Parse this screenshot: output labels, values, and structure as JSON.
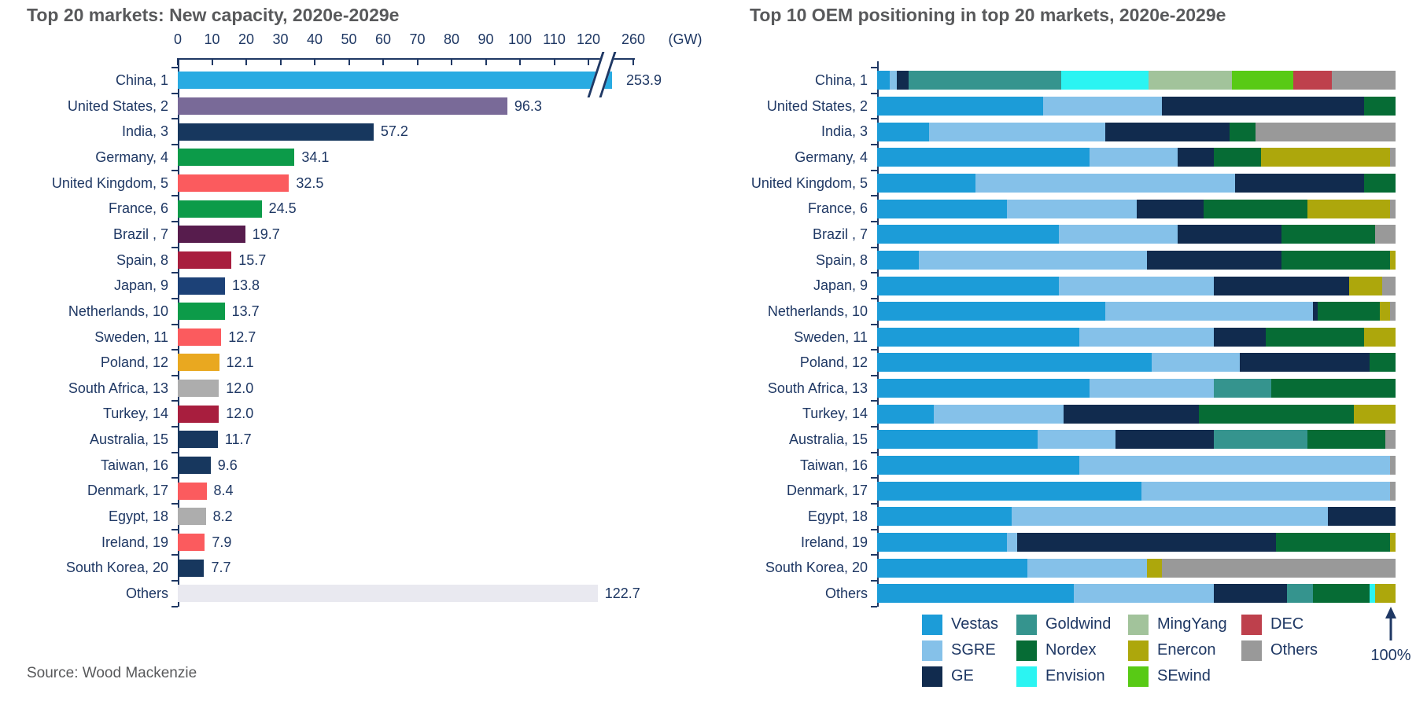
{
  "source_note": "Source: Wood Mackenzie",
  "colors": {
    "text_navy": "#1F3864",
    "title_gray": "#58595B",
    "axis_navy": "#1F3864",
    "background": "#FFFFFF"
  },
  "chart_data": [
    {
      "type": "bar",
      "orientation": "horizontal",
      "title": "Top 20 markets: New capacity, 2020e-2029e",
      "unit_label": "(GW)",
      "axis_ticks": [
        0,
        10,
        20,
        30,
        40,
        50,
        60,
        70,
        80,
        90,
        100,
        110,
        120
      ],
      "axis_break_label": 260,
      "axis_break": "axis broken between 120 and 260; China bar drawn truncated with break slashes",
      "categories": [
        "China, 1",
        "United States, 2",
        "India, 3",
        "Germany, 4",
        "United Kingdom, 5",
        "France, 6",
        "Brazil , 7",
        "Spain, 8",
        "Japan, 9",
        "Netherlands, 10",
        "Sweden, 11",
        "Poland, 12",
        "South Africa, 13",
        "Turkey, 14",
        "Australia, 15",
        "Taiwan, 16",
        "Denmark, 17",
        "Egypt, 18",
        "Ireland, 19",
        "South Korea, 20",
        "Others"
      ],
      "values": [
        253.9,
        96.3,
        57.2,
        34.1,
        32.5,
        24.5,
        19.7,
        15.7,
        13.8,
        13.7,
        12.7,
        12.1,
        12.0,
        12.0,
        11.7,
        9.6,
        8.4,
        8.2,
        7.9,
        7.7,
        122.7
      ],
      "value_labels": [
        "253.9",
        "96.3",
        "57.2",
        "34.1",
        "32.5",
        "24.5",
        "19.7",
        "15.7",
        "13.8",
        "13.7",
        "12.7",
        "12.1",
        "12.0",
        "12.0",
        "11.7",
        "9.6",
        "8.4",
        "8.2",
        "7.9",
        "7.7",
        "122.7"
      ],
      "bar_colors": [
        "#29ABE2",
        "#796A98",
        "#17375E",
        "#0C9B49",
        "#FB5B5E",
        "#0C9B49",
        "#571C4D",
        "#A81E3E",
        "#1C4177",
        "#0C9B49",
        "#FB5B5E",
        "#E9A820",
        "#ADADAD",
        "#A81E3E",
        "#17375E",
        "#17375E",
        "#FB5B5E",
        "#ADADAD",
        "#FB5B5E",
        "#17375E",
        "#E9E9F0"
      ],
      "truncated_bar_index": 0
    },
    {
      "type": "stacked-bar-100",
      "orientation": "horizontal",
      "title": "Top 10 OEM positioning in top 20 markets, 2020e-2029e",
      "axis_label": "100%",
      "categories": [
        "China, 1",
        "United States, 2",
        "India, 3",
        "Germany, 4",
        "United Kingdom, 5",
        "France, 6",
        "Brazil , 7",
        "Spain, 8",
        "Japan, 9",
        "Netherlands, 10",
        "Sweden, 11",
        "Poland, 12",
        "South Africa, 13",
        "Turkey, 14",
        "Australia, 15",
        "Taiwan, 16",
        "Denmark, 17",
        "Egypt, 18",
        "Ireland, 19",
        "South Korea, 20",
        "Others"
      ],
      "series": [
        {
          "name": "Vestas",
          "color": "#1C9CD8",
          "values": [
            2.4,
            32,
            10,
            41,
            19,
            25,
            35,
            8,
            35,
            44,
            39,
            53,
            41,
            11,
            31,
            39,
            51,
            26,
            25,
            29,
            38
          ]
        },
        {
          "name": "SGRE",
          "color": "#85C1E9",
          "values": [
            1.4,
            23,
            34,
            17,
            50,
            25,
            23,
            44,
            30,
            40,
            26,
            17,
            24,
            25,
            15,
            60,
            48,
            61,
            2,
            23,
            27
          ]
        },
        {
          "name": "GE",
          "color": "#112B4E",
          "values": [
            2.3,
            39,
            24,
            7,
            25,
            13,
            20,
            26,
            26,
            1,
            10,
            25,
            0,
            26,
            19,
            0,
            0,
            13,
            50,
            0,
            14
          ]
        },
        {
          "name": "Goldwind",
          "color": "#35948E",
          "values": [
            29.4,
            0,
            0,
            0,
            0,
            0,
            0,
            0,
            0,
            0,
            0,
            0,
            11,
            0,
            18,
            0,
            0,
            0,
            0,
            0,
            5
          ]
        },
        {
          "name": "Nordex",
          "color": "#066C35",
          "values": [
            0,
            6,
            5,
            9,
            6,
            20,
            18,
            21,
            0,
            12,
            19,
            5,
            24,
            30,
            15,
            0,
            0,
            0,
            22,
            0,
            11
          ]
        },
        {
          "name": "Envision",
          "color": "#2BF4F2",
          "values": [
            16.8,
            0,
            0,
            0,
            0,
            0,
            0,
            0,
            0,
            0,
            0,
            0,
            0,
            0,
            0,
            0,
            0,
            0,
            0,
            0,
            1
          ]
        },
        {
          "name": "MingYang",
          "color": "#A2C39B",
          "values": [
            16.1,
            0,
            0,
            0,
            0,
            0,
            0,
            0,
            0,
            0,
            0,
            0,
            0,
            0,
            0,
            0,
            0,
            0,
            0,
            0,
            0
          ]
        },
        {
          "name": "Enercon",
          "color": "#ADA70C",
          "values": [
            0,
            0,
            0,
            25,
            0,
            16,
            0,
            1,
            6.5,
            2,
            6,
            0,
            0,
            8,
            0,
            0,
            0,
            0,
            1,
            3,
            4
          ]
        },
        {
          "name": "SEwind",
          "color": "#58CA15",
          "values": [
            11.9,
            0,
            0,
            0,
            0,
            0,
            0,
            0,
            0,
            0,
            0,
            0,
            0,
            0,
            0,
            0,
            0,
            0,
            0,
            0,
            0
          ]
        },
        {
          "name": "DEC",
          "color": "#BE404C",
          "values": [
            7.4,
            0,
            0,
            0,
            0,
            0,
            0,
            0,
            0,
            0,
            0,
            0,
            0,
            0,
            0,
            0,
            0,
            0,
            0,
            0,
            0
          ]
        },
        {
          "name": "Others",
          "color": "#999999",
          "values": [
            12.3,
            0,
            27,
            1,
            0,
            1,
            4,
            0,
            2.5,
            1,
            0,
            0,
            0,
            0,
            2,
            1,
            1,
            0,
            0,
            45,
            0
          ]
        }
      ],
      "legend_position": "bottom",
      "xlim": [
        0,
        100
      ]
    }
  ]
}
